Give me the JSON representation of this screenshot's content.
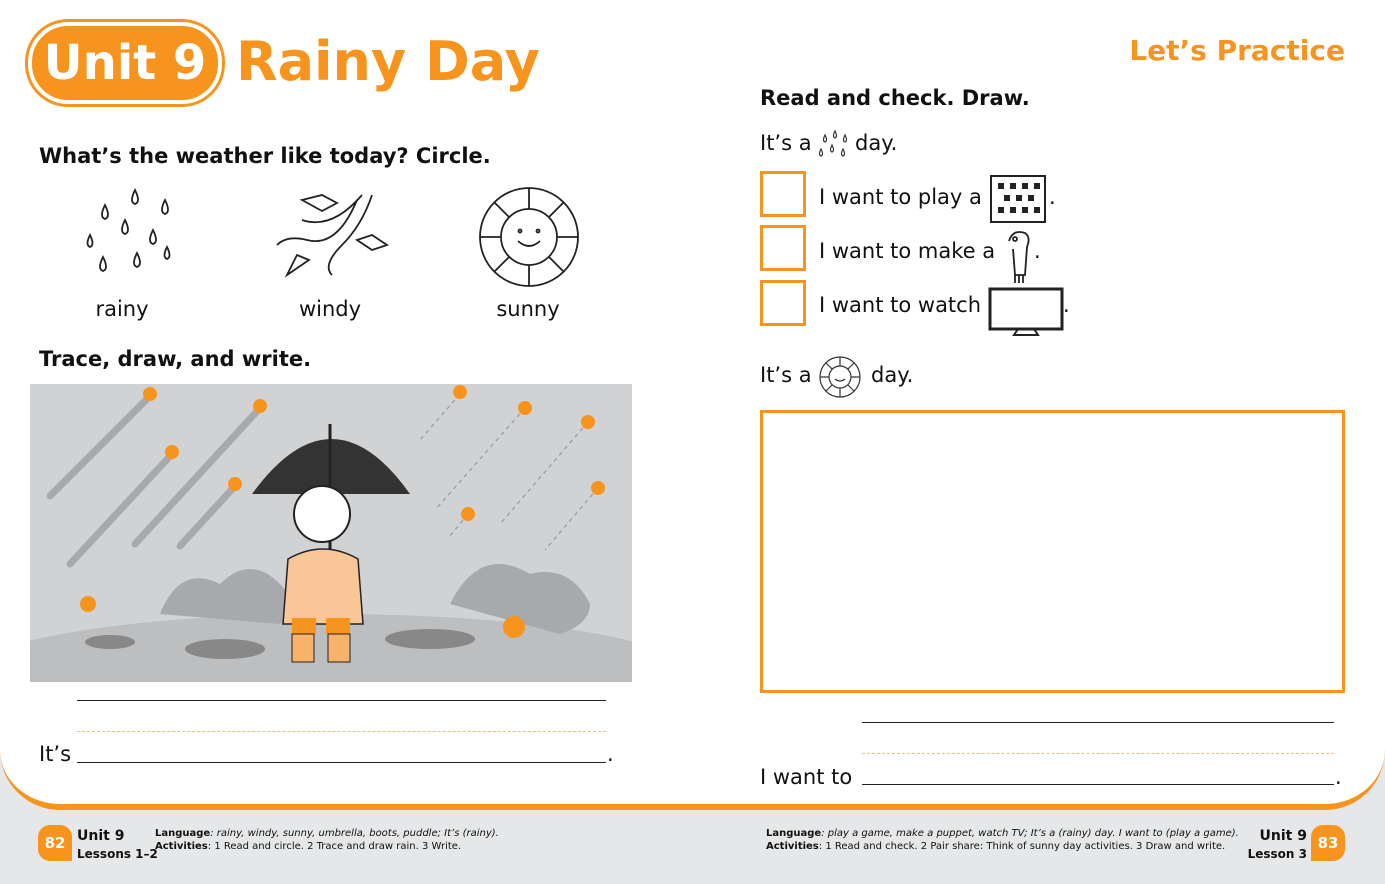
{
  "header": {
    "unit_badge": "Unit 9",
    "title": "Rainy Day",
    "section": "Let’s Practice"
  },
  "left": {
    "q1": "What’s the weather like today? Circle.",
    "weather": [
      {
        "label": "rainy",
        "icon": "rain-icon"
      },
      {
        "label": "windy",
        "icon": "wind-icon"
      },
      {
        "label": "sunny",
        "icon": "sun-icon"
      }
    ],
    "q2": "Trace, draw, and write.",
    "write_prefix": "It’s",
    "write_suffix": "."
  },
  "right": {
    "q": "Read and check. Draw.",
    "line1_prefix": "It’s a",
    "line1_suffix": "day.",
    "options": [
      {
        "text": "I want to play a",
        "icon": "game-board-icon"
      },
      {
        "text": "I want to make a",
        "icon": "puppet-icon"
      },
      {
        "text": "I want to watch",
        "icon": "tv-icon"
      }
    ],
    "period": ".",
    "line2_prefix": "It’s a",
    "line2_suffix": "day.",
    "write_prefix": "I want to",
    "write_suffix": "."
  },
  "footer": {
    "left": {
      "page": "82",
      "unit": "Unit 9",
      "lessons": "Lessons 1–2",
      "language_label": "Language",
      "language": ": rainy, windy, sunny, umbrella, boots, puddle; It’s (rainy).",
      "activities_label": "Activities",
      "activities": ": 1 Read and circle. 2 Trace and draw rain. 3 Write."
    },
    "right": {
      "page": "83",
      "unit": "Unit 9",
      "lessons": "Lesson 3",
      "language_label": "Language",
      "language": ": play a game, make a puppet, watch TV; It’s a (rainy) day. I want to (play a game).",
      "activities_label": "Activities",
      "activities": ": 1 Read and check. 2 Pair share: Think of sunny day activities. 3 Draw and write."
    }
  },
  "colors": {
    "accent": "#f7941d"
  }
}
